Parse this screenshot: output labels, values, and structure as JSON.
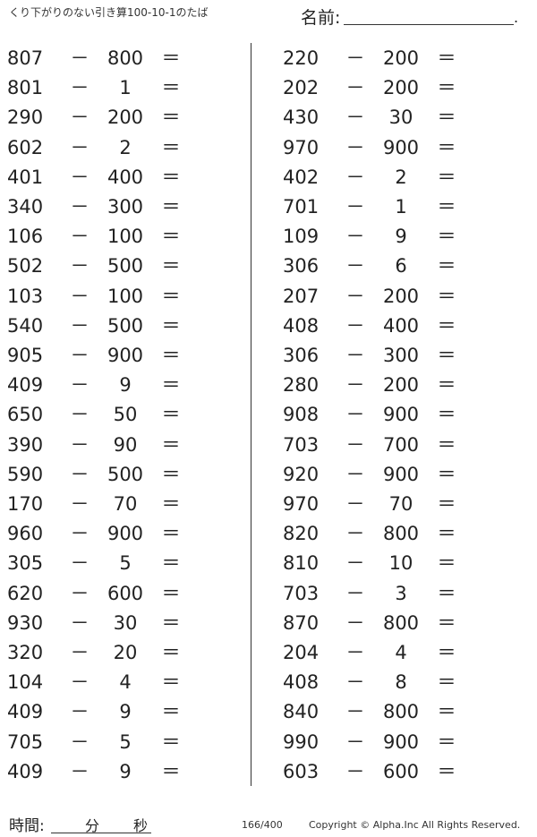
{
  "header": {
    "title": "くり下がりのない引き算100-10-1のたば",
    "name_label": "名前:",
    "name_end": "."
  },
  "operators": {
    "minus": "－",
    "equals": "＝"
  },
  "left": [
    [
      "807",
      "800"
    ],
    [
      "801",
      "1"
    ],
    [
      "290",
      "200"
    ],
    [
      "602",
      "2"
    ],
    [
      "401",
      "400"
    ],
    [
      "340",
      "300"
    ],
    [
      "106",
      "100"
    ],
    [
      "502",
      "500"
    ],
    [
      "103",
      "100"
    ],
    [
      "540",
      "500"
    ],
    [
      "905",
      "900"
    ],
    [
      "409",
      "9"
    ],
    [
      "650",
      "50"
    ],
    [
      "390",
      "90"
    ],
    [
      "590",
      "500"
    ],
    [
      "170",
      "70"
    ],
    [
      "960",
      "900"
    ],
    [
      "305",
      "5"
    ],
    [
      "620",
      "600"
    ],
    [
      "930",
      "30"
    ],
    [
      "320",
      "20"
    ],
    [
      "104",
      "4"
    ],
    [
      "409",
      "9"
    ],
    [
      "705",
      "5"
    ],
    [
      "409",
      "9"
    ]
  ],
  "right": [
    [
      "220",
      "200"
    ],
    [
      "202",
      "200"
    ],
    [
      "430",
      "30"
    ],
    [
      "970",
      "900"
    ],
    [
      "402",
      "2"
    ],
    [
      "701",
      "1"
    ],
    [
      "109",
      "9"
    ],
    [
      "306",
      "6"
    ],
    [
      "207",
      "200"
    ],
    [
      "408",
      "400"
    ],
    [
      "306",
      "300"
    ],
    [
      "280",
      "200"
    ],
    [
      "908",
      "900"
    ],
    [
      "703",
      "700"
    ],
    [
      "920",
      "900"
    ],
    [
      "970",
      "70"
    ],
    [
      "820",
      "800"
    ],
    [
      "810",
      "10"
    ],
    [
      "703",
      "3"
    ],
    [
      "870",
      "800"
    ],
    [
      "204",
      "4"
    ],
    [
      "408",
      "8"
    ],
    [
      "840",
      "800"
    ],
    [
      "990",
      "900"
    ],
    [
      "603",
      "600"
    ]
  ],
  "footer": {
    "time_label": "時間:",
    "minutes": "分",
    "seconds": "秒",
    "page": "166/400",
    "copyright": "Copyright ©  Alpha.Inc All Rights Reserved."
  }
}
